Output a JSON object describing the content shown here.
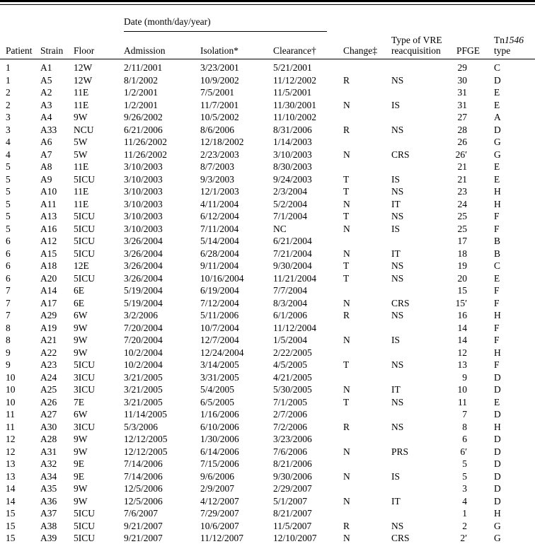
{
  "table": {
    "date_group_label": "Date (month/day/year)",
    "columns": {
      "patient": "Patient",
      "strain": "Strain",
      "floor": "Floor",
      "admission": "Admission",
      "isolation": "Isolation*",
      "clearance": "Clearance†",
      "change": "Change‡",
      "reacquisition": "Type of VRE reacquisition",
      "pfge": "PFGE",
      "tn_prefix": "Tn",
      "tn_italic": "1546",
      "tn_line2": "type"
    },
    "row_keys": [
      "patient",
      "strain",
      "floor",
      "admission",
      "isolation",
      "clearance",
      "change",
      "reacquisition",
      "pfge",
      "tn_type"
    ],
    "rows": [
      [
        "1",
        "A1",
        "12W",
        "2/11/2001",
        "3/23/2001",
        "5/21/2001",
        "",
        "",
        "29",
        "C"
      ],
      [
        "1",
        "A5",
        "12W",
        "8/1/2002",
        "10/9/2002",
        "11/12/2002",
        "R",
        "NS",
        "30",
        "D"
      ],
      [
        "2",
        "A2",
        "11E",
        "1/2/2001",
        "7/5/2001",
        "11/5/2001",
        "",
        "",
        "31",
        "E"
      ],
      [
        "2",
        "A3",
        "11E",
        "1/2/2001",
        "11/7/2001",
        "11/30/2001",
        "N",
        "IS",
        "31",
        "E"
      ],
      [
        "3",
        "A4",
        "9W",
        "9/26/2002",
        "10/5/2002",
        "11/10/2002",
        "",
        "",
        "27",
        "A"
      ],
      [
        "3",
        "A33",
        "NCU",
        "6/21/2006",
        "8/6/2006",
        "8/31/2006",
        "R",
        "NS",
        "28",
        "D"
      ],
      [
        "4",
        "A6",
        "5W",
        "11/26/2002",
        "12/18/2002",
        "1/14/2003",
        "",
        "",
        "26",
        "G"
      ],
      [
        "4",
        "A7",
        "5W",
        "11/26/2002",
        "2/23/2003",
        "3/10/2003",
        "N",
        "CRS",
        "26′",
        "G"
      ],
      [
        "5",
        "A8",
        "11E",
        "3/10/2003",
        "8/7/2003",
        "8/30/2003",
        "",
        "",
        "21",
        "E"
      ],
      [
        "5",
        "A9",
        "5ICU",
        "3/10/2003",
        "9/3/2003",
        "9/24/2003",
        "T",
        "IS",
        "21",
        "E"
      ],
      [
        "5",
        "A10",
        "11E",
        "3/10/2003",
        "12/1/2003",
        "2/3/2004",
        "T",
        "NS",
        "23",
        "H"
      ],
      [
        "5",
        "A11",
        "11E",
        "3/10/2003",
        "4/11/2004",
        "5/2/2004",
        "N",
        "IT",
        "24",
        "H"
      ],
      [
        "5",
        "A13",
        "5ICU",
        "3/10/2003",
        "6/12/2004",
        "7/1/2004",
        "T",
        "NS",
        "25",
        "F"
      ],
      [
        "5",
        "A16",
        "5ICU",
        "3/10/2003",
        "7/11/2004",
        "NC",
        "N",
        "IS",
        "25",
        "F"
      ],
      [
        "6",
        "A12",
        "5ICU",
        "3/26/2004",
        "5/14/2004",
        "6/21/2004",
        "",
        "",
        "17",
        "B"
      ],
      [
        "6",
        "A15",
        "5ICU",
        "3/26/2004",
        "6/28/2004",
        "7/21/2004",
        "N",
        "IT",
        "18",
        "B"
      ],
      [
        "6",
        "A18",
        "12E",
        "3/26/2004",
        "9/11/2004",
        "9/30/2004",
        "T",
        "NS",
        "19",
        "C"
      ],
      [
        "6",
        "A20",
        "5ICU",
        "3/26/2004",
        "10/16/2004",
        "11/21/2004",
        "T",
        "NS",
        "20",
        "E"
      ],
      [
        "7",
        "A14",
        "6E",
        "5/19/2004",
        "6/19/2004",
        "7/7/2004",
        "",
        "",
        "15",
        "F"
      ],
      [
        "7",
        "A17",
        "6E",
        "5/19/2004",
        "7/12/2004",
        "8/3/2004",
        "N",
        "CRS",
        "15′",
        "F"
      ],
      [
        "7",
        "A29",
        "6W",
        "3/2/2006",
        "5/11/2006",
        "6/1/2006",
        "R",
        "NS",
        "16",
        "H"
      ],
      [
        "8",
        "A19",
        "9W",
        "7/20/2004",
        "10/7/2004",
        "11/12/2004",
        "",
        "",
        "14",
        "F"
      ],
      [
        "8",
        "A21",
        "9W",
        "7/20/2004",
        "12/7/2004",
        "1/5/2004",
        "N",
        "IS",
        "14",
        "F"
      ],
      [
        "9",
        "A22",
        "9W",
        "10/2/2004",
        "12/24/2004",
        "2/22/2005",
        "",
        "",
        "12",
        "H"
      ],
      [
        "9",
        "A23",
        "5ICU",
        "10/2/2004",
        "3/14/2005",
        "4/5/2005",
        "T",
        "NS",
        "13",
        "F"
      ],
      [
        "10",
        "A24",
        "3ICU",
        "3/21/2005",
        "3/31/2005",
        "4/21/2005",
        "",
        "",
        "9",
        "D"
      ],
      [
        "10",
        "A25",
        "3ICU",
        "3/21/2005",
        "5/4/2005",
        "5/30/2005",
        "N",
        "IT",
        "10",
        "D"
      ],
      [
        "10",
        "A26",
        "7E",
        "3/21/2005",
        "6/5/2005",
        "7/1/2005",
        "T",
        "NS",
        "11",
        "E"
      ],
      [
        "11",
        "A27",
        "6W",
        "11/14/2005",
        "1/16/2006",
        "2/7/2006",
        "",
        "",
        "7",
        "D"
      ],
      [
        "11",
        "A30",
        "3ICU",
        "5/3/2006",
        "6/10/2006",
        "7/2/2006",
        "R",
        "NS",
        "8",
        "H"
      ],
      [
        "12",
        "A28",
        "9W",
        "12/12/2005",
        "1/30/2006",
        "3/23/2006",
        "",
        "",
        "6",
        "D"
      ],
      [
        "12",
        "A31",
        "9W",
        "12/12/2005",
        "6/14/2006",
        "7/6/2006",
        "N",
        "PRS",
        "6′",
        "D"
      ],
      [
        "13",
        "A32",
        "9E",
        "7/14/2006",
        "7/15/2006",
        "8/21/2006",
        "",
        "",
        "5",
        "D"
      ],
      [
        "13",
        "A34",
        "9E",
        "7/14/2006",
        "9/6/2006",
        "9/30/2006",
        "N",
        "IS",
        "5",
        "D"
      ],
      [
        "14",
        "A35",
        "9W",
        "12/5/2006",
        "2/9/2007",
        "2/29/2007",
        "",
        "",
        "3",
        "D"
      ],
      [
        "14",
        "A36",
        "9W",
        "12/5/2006",
        "4/12/2007",
        "5/1/2007",
        "N",
        "IT",
        "4",
        "D"
      ],
      [
        "15",
        "A37",
        "5ICU",
        "7/6/2007",
        "7/29/2007",
        "8/21/2007",
        "",
        "",
        "1",
        "H"
      ],
      [
        "15",
        "A38",
        "5ICU",
        "9/21/2007",
        "10/6/2007",
        "11/5/2007",
        "R",
        "NS",
        "2",
        "G"
      ],
      [
        "15",
        "A39",
        "5ICU",
        "9/21/2007",
        "11/12/2007",
        "12/10/2007",
        "N",
        "CRS",
        "2′",
        "G"
      ]
    ]
  }
}
